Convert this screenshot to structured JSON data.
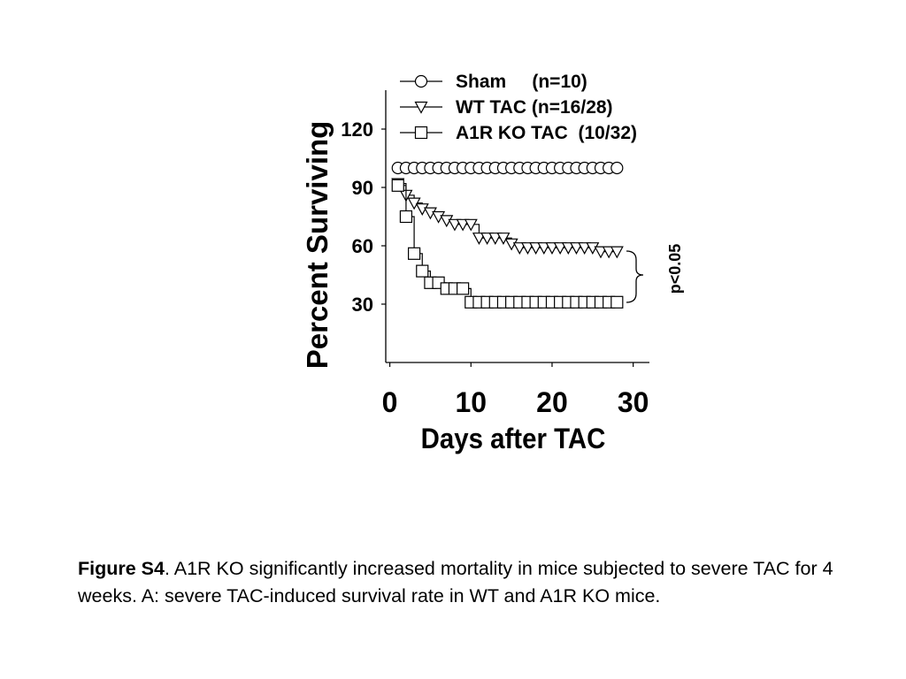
{
  "chart_data": {
    "type": "line",
    "step": true,
    "xlabel": "Days after TAC",
    "ylabel": "Percent Surviving",
    "xlim": [
      -0.5,
      32
    ],
    "ylim": [
      0,
      140
    ],
    "x_ticks": [
      0,
      10,
      20,
      30
    ],
    "x_tick_labels": [
      "0",
      "10",
      "20",
      "30"
    ],
    "y_ticks": [
      30,
      60,
      90,
      120
    ],
    "y_tick_labels": [
      "30",
      "60",
      "90",
      "120"
    ],
    "legend_position": "top",
    "series": [
      {
        "name": "Sham",
        "legend_label": "Sham     (n=10)",
        "marker": "circle",
        "x": [
          1,
          28
        ],
        "y": [
          100,
          100
        ],
        "marker_x": [
          1,
          2,
          3,
          4,
          5,
          6,
          7,
          8,
          9,
          10,
          11,
          12,
          13,
          14,
          15,
          16,
          17,
          18,
          19,
          20,
          21,
          22,
          23,
          24,
          25,
          26,
          27,
          28
        ]
      },
      {
        "name": "WT TAC",
        "legend_label": "WT TAC (n=16/28)",
        "marker": "triangle-down",
        "x": [
          1,
          2,
          3,
          4,
          5,
          6,
          7,
          8,
          9,
          10,
          11,
          12,
          15,
          16,
          25,
          26,
          28
        ],
        "y": [
          92,
          86,
          82,
          79,
          77,
          75,
          73,
          71,
          71,
          71,
          64,
          64,
          61,
          59,
          59,
          57,
          57
        ],
        "marker_x": [
          1,
          2,
          3,
          4,
          5,
          6,
          7,
          8,
          9,
          10,
          11,
          12,
          13,
          14,
          15,
          16,
          17,
          18,
          19,
          20,
          21,
          22,
          23,
          24,
          25,
          26,
          27,
          28
        ]
      },
      {
        "name": "A1R KO TAC",
        "legend_label": "A1R KO TAC  (10/32)",
        "marker": "square",
        "x": [
          1,
          2,
          3,
          4,
          5,
          6,
          7,
          8,
          9,
          10,
          28
        ],
        "y": [
          91,
          75,
          56,
          47,
          41,
          41,
          38,
          38,
          38,
          31,
          31
        ],
        "marker_x": [
          1,
          2,
          3,
          4,
          5,
          6,
          7,
          8,
          9,
          10,
          11,
          12,
          13,
          14,
          15,
          16,
          17,
          18,
          19,
          20,
          21,
          22,
          23,
          24,
          25,
          26,
          27,
          28
        ]
      }
    ],
    "annotations": [
      {
        "text": "p<0.05",
        "between": [
          "WT TAC",
          "A1R KO TAC"
        ],
        "orientation": "vertical"
      }
    ]
  },
  "caption": {
    "label": "Figure S4",
    "text": ".  A1R KO significantly increased mortality in mice subjected to severe TAC for 4 weeks.  A: severe TAC-induced survival rate in WT and A1R KO mice."
  },
  "colors": {
    "line": "#000000",
    "marker_fill": "#ffffff",
    "background": "#ffffff"
  }
}
